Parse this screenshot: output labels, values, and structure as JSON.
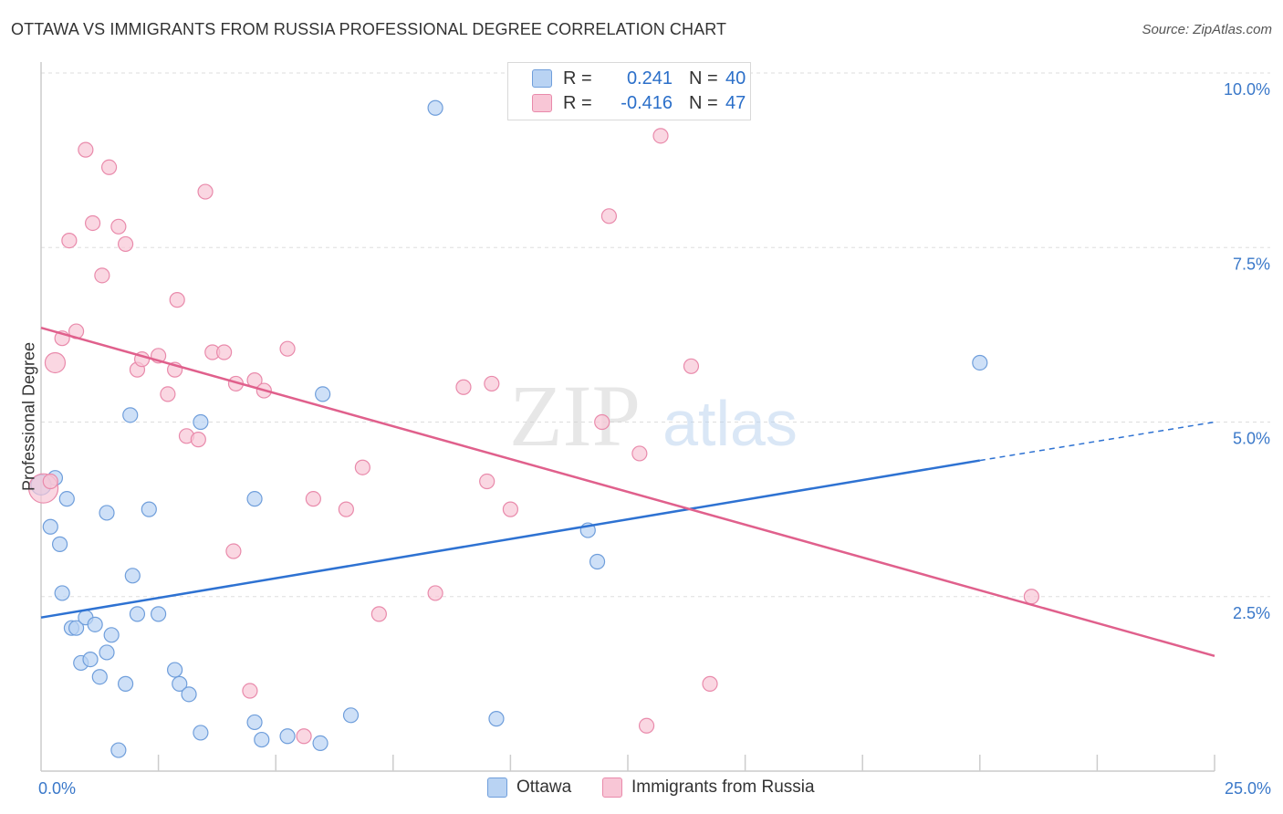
{
  "title": "OTTAWA VS IMMIGRANTS FROM RUSSIA PROFESSIONAL DEGREE CORRELATION CHART",
  "source": "Source: ZipAtlas.com",
  "watermark": {
    "zip": "ZIP",
    "atlas": "atlas"
  },
  "legend": {
    "rows": [
      {
        "r_label": "R =",
        "r_value": "0.241",
        "n_label": "N =",
        "n_value": "40"
      },
      {
        "r_label": "R =",
        "r_value": "-0.416",
        "n_label": "N =",
        "n_value": "47"
      }
    ]
  },
  "colors": {
    "ottawa_fill": "#b9d3f3",
    "ottawa_stroke": "#6f9edb",
    "ottawa_line": "#2e72d2",
    "russia_fill": "#f8c6d6",
    "russia_stroke": "#e98aab",
    "russia_line": "#e0608c",
    "tick_label": "#3a78c9",
    "grid": "#dddddd"
  },
  "chart_data": {
    "type": "scatter",
    "ylabel": "Professional Degree",
    "xlim": [
      0,
      25
    ],
    "ylim": [
      0,
      10.5
    ],
    "x_tick_labels": [
      {
        "x": 0,
        "label": "0.0%"
      },
      {
        "x": 25,
        "label": "25.0%"
      }
    ],
    "y_tick_labels": [
      {
        "y": 2.5,
        "label": "2.5%"
      },
      {
        "y": 5.0,
        "label": "5.0%"
      },
      {
        "y": 7.5,
        "label": "7.5%"
      },
      {
        "y": 10.0,
        "label": "10.0%"
      }
    ],
    "x_minor_ticks": [
      2.5,
      5,
      7.5,
      10,
      12.5,
      15,
      17.5,
      20,
      22.5,
      25
    ],
    "grid": true,
    "series": [
      {
        "name": "Ottawa",
        "points": [
          [
            0.3,
            4.2
          ],
          [
            0.55,
            3.9
          ],
          [
            0.2,
            3.5
          ],
          [
            0.4,
            3.25
          ],
          [
            0.45,
            2.55
          ],
          [
            0.65,
            2.05
          ],
          [
            0.75,
            2.05
          ],
          [
            0.95,
            2.2
          ],
          [
            1.15,
            2.1
          ],
          [
            0.85,
            1.55
          ],
          [
            1.05,
            1.6
          ],
          [
            1.25,
            1.35
          ],
          [
            1.4,
            1.7
          ],
          [
            1.5,
            1.95
          ],
          [
            1.4,
            3.7
          ],
          [
            1.9,
            5.1
          ],
          [
            2.3,
            3.75
          ],
          [
            1.95,
            2.8
          ],
          [
            2.05,
            2.25
          ],
          [
            2.5,
            2.25
          ],
          [
            1.8,
            1.25
          ],
          [
            2.85,
            1.45
          ],
          [
            2.95,
            1.25
          ],
          [
            3.15,
            1.1
          ],
          [
            3.4,
            0.55
          ],
          [
            1.65,
            0.3
          ],
          [
            4.55,
            0.7
          ],
          [
            4.7,
            0.45
          ],
          [
            5.25,
            0.5
          ],
          [
            5.95,
            0.4
          ],
          [
            6.6,
            0.8
          ],
          [
            9.7,
            0.75
          ],
          [
            3.4,
            5.0
          ],
          [
            4.55,
            3.9
          ],
          [
            6.0,
            5.4
          ],
          [
            8.4,
            9.5
          ],
          [
            11.65,
            3.45
          ],
          [
            11.85,
            3.0
          ],
          [
            20.0,
            5.85
          ],
          [
            0.0,
            4.1
          ]
        ],
        "trend": {
          "x": [
            0,
            20
          ],
          "y": [
            2.2,
            4.45
          ],
          "dashed_extension": {
            "x": [
              20,
              25
            ],
            "y": [
              4.45,
              5.0
            ]
          }
        }
      },
      {
        "name": "Immigrants from Russia",
        "points": [
          [
            0.3,
            5.85
          ],
          [
            0.45,
            6.2
          ],
          [
            0.75,
            6.3
          ],
          [
            0.6,
            7.6
          ],
          [
            0.95,
            8.9
          ],
          [
            1.45,
            8.65
          ],
          [
            1.1,
            7.85
          ],
          [
            1.65,
            7.8
          ],
          [
            1.8,
            7.55
          ],
          [
            1.3,
            7.1
          ],
          [
            2.9,
            6.75
          ],
          [
            3.5,
            8.3
          ],
          [
            2.05,
            5.75
          ],
          [
            2.15,
            5.9
          ],
          [
            2.5,
            5.95
          ],
          [
            2.85,
            5.75
          ],
          [
            2.7,
            5.4
          ],
          [
            3.1,
            4.8
          ],
          [
            3.35,
            4.75
          ],
          [
            3.65,
            6.0
          ],
          [
            3.9,
            6.0
          ],
          [
            4.15,
            5.55
          ],
          [
            4.55,
            5.6
          ],
          [
            4.75,
            5.45
          ],
          [
            5.25,
            6.05
          ],
          [
            5.8,
            3.9
          ],
          [
            6.5,
            3.75
          ],
          [
            6.85,
            4.35
          ],
          [
            4.1,
            3.15
          ],
          [
            9.0,
            5.5
          ],
          [
            9.5,
            4.15
          ],
          [
            9.6,
            5.55
          ],
          [
            10.0,
            3.75
          ],
          [
            8.4,
            2.55
          ],
          [
            7.2,
            2.25
          ],
          [
            11.95,
            5.0
          ],
          [
            12.1,
            7.95
          ],
          [
            12.75,
            4.55
          ],
          [
            12.9,
            0.65
          ],
          [
            13.2,
            9.1
          ],
          [
            13.85,
            5.8
          ],
          [
            14.25,
            1.25
          ],
          [
            21.1,
            2.5
          ],
          [
            4.45,
            1.15
          ],
          [
            5.6,
            0.5
          ],
          [
            0.05,
            4.05
          ],
          [
            0.2,
            4.15
          ]
        ],
        "trend": {
          "x": [
            0,
            25
          ],
          "y": [
            6.35,
            1.65
          ]
        }
      }
    ]
  },
  "bottom_legend": {
    "items": [
      "Ottawa",
      "Immigrants from Russia"
    ]
  }
}
